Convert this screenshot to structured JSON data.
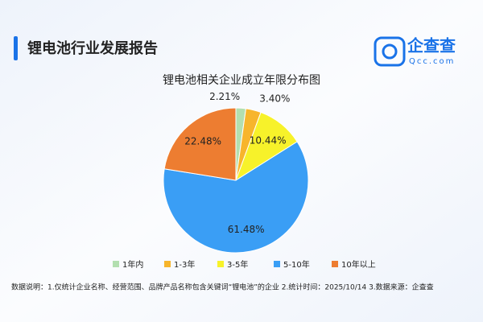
{
  "header": {
    "title": "锂电池行业发展报告",
    "logo_name": "企查查",
    "logo_domain": "Qcc.com"
  },
  "chart_data": {
    "type": "pie",
    "title": "锂电池相关企业成立年限分布图",
    "categories": [
      "1年内",
      "1-3年",
      "3-5年",
      "5-10年",
      "10年以上"
    ],
    "values": [
      2.21,
      3.4,
      10.44,
      61.48,
      22.48
    ],
    "value_labels": [
      "2.21%",
      "3.40%",
      "10.44%",
      "61.48%",
      "22.48%"
    ],
    "colors": [
      "#b3dfb0",
      "#f7b52c",
      "#f7f22a",
      "#3a9ef5",
      "#ed7d31"
    ],
    "legend": "bottom"
  },
  "footnote": "数据说明：1.仅统计企业名称、经营范围、品牌产品名称包含关键词“锂电池”的企业  2.统计时间：2025/10/14  3.数据来源：企查查"
}
